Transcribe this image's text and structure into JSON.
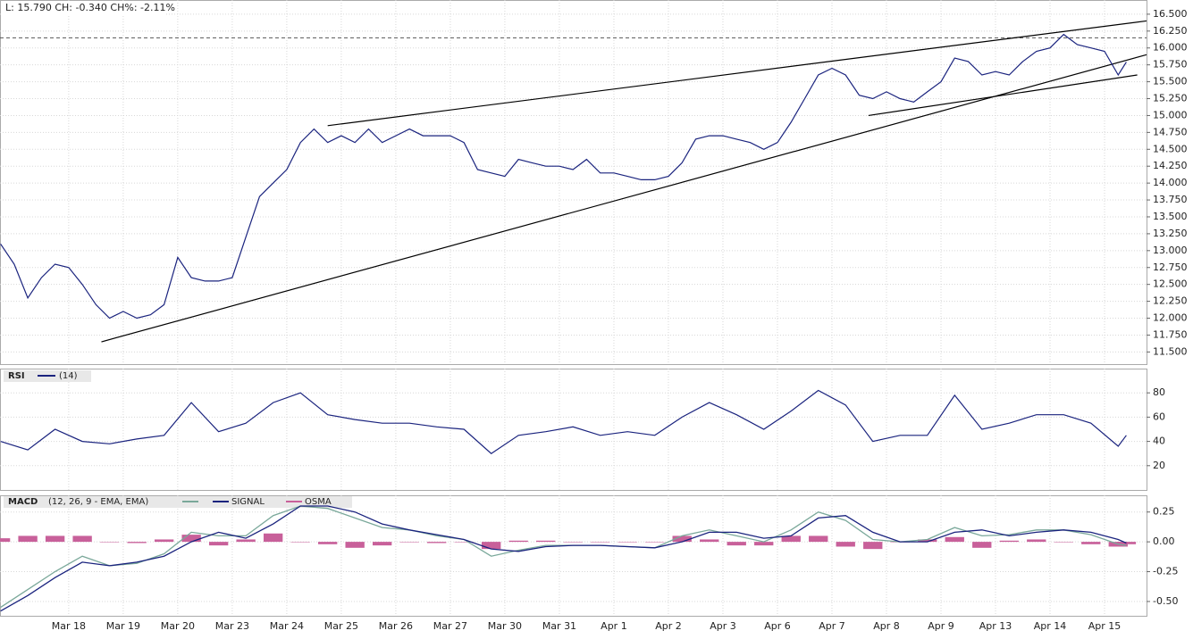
{
  "chart_data": [
    {
      "type": "line",
      "title": "L: 15.790 CH: -0.340 CH%: -2.11%",
      "color": "#1a237e",
      "x": [
        -1.25,
        -1,
        -0.75,
        -0.5,
        -0.25,
        0,
        0.25,
        0.5,
        0.75,
        1,
        1.25,
        1.5,
        1.75,
        2,
        2.25,
        2.5,
        2.75,
        3,
        3.25,
        3.5,
        3.75,
        4,
        4.25,
        4.5,
        4.75,
        5,
        5.25,
        5.5,
        5.75,
        6,
        6.25,
        6.5,
        6.75,
        7,
        7.25,
        7.5,
        7.75,
        8,
        8.25,
        8.5,
        8.75,
        9,
        9.25,
        9.5,
        9.75,
        10,
        10.25,
        10.5,
        10.75,
        11,
        11.25,
        11.5,
        11.75,
        12,
        12.25,
        12.5,
        12.75,
        13,
        13.25,
        13.5,
        13.75,
        14,
        14.25,
        14.5,
        14.75,
        15,
        15.25,
        15.5,
        15.75,
        16,
        16.25,
        16.5,
        16.75,
        17,
        17.25,
        17.5,
        17.75,
        18,
        18.25,
        18.5,
        18.75,
        19,
        19.25,
        19.4
      ],
      "values": [
        13.1,
        12.8,
        12.3,
        12.6,
        12.8,
        12.75,
        12.5,
        12.2,
        12.0,
        12.1,
        12.0,
        12.05,
        12.2,
        12.9,
        12.6,
        12.55,
        12.55,
        12.6,
        13.2,
        13.8,
        14.0,
        14.2,
        14.6,
        14.8,
        14.6,
        14.7,
        14.6,
        14.8,
        14.6,
        14.7,
        14.8,
        14.7,
        14.7,
        14.7,
        14.6,
        14.2,
        14.15,
        14.1,
        14.35,
        14.3,
        14.25,
        14.25,
        14.2,
        14.35,
        14.15,
        14.15,
        14.1,
        14.05,
        14.05,
        14.1,
        14.3,
        14.65,
        14.7,
        14.7,
        14.65,
        14.6,
        14.5,
        14.6,
        14.9,
        15.25,
        15.6,
        15.7,
        15.6,
        15.3,
        15.25,
        15.35,
        15.25,
        15.2,
        15.35,
        15.5,
        15.85,
        15.8,
        15.6,
        15.65,
        15.6,
        15.8,
        15.95,
        16.0,
        16.2,
        16.05,
        16.0,
        15.95,
        15.6,
        15.79
      ],
      "trendlines": [
        [
          4.75,
          14.85,
          19.77,
          16.4
        ],
        [
          0.6,
          11.65,
          19.77,
          15.9
        ],
        [
          14.67,
          15.0,
          19.6,
          15.6
        ]
      ],
      "reference_line": 16.15,
      "xlim": [
        -1.26,
        19.77
      ],
      "ylim": [
        11.32,
        16.71
      ],
      "xticks": [
        {
          "value": 0,
          "label": "Mar 18"
        },
        {
          "value": 1,
          "label": "Mar 19"
        },
        {
          "value": 2,
          "label": "Mar 20"
        },
        {
          "value": 3,
          "label": "Mar 23"
        },
        {
          "value": 4,
          "label": "Mar 24"
        },
        {
          "value": 5,
          "label": "Mar 25"
        },
        {
          "value": 6,
          "label": "Mar 26"
        },
        {
          "value": 7,
          "label": "Mar 27"
        },
        {
          "value": 8,
          "label": "Mar 30"
        },
        {
          "value": 9,
          "label": "Mar 31"
        },
        {
          "value": 10,
          "label": "Apr 1"
        },
        {
          "value": 11,
          "label": "Apr 2"
        },
        {
          "value": 12,
          "label": "Apr 3"
        },
        {
          "value": 13,
          "label": "Apr 6"
        },
        {
          "value": 14,
          "label": "Apr 7"
        },
        {
          "value": 15,
          "label": "Apr 8"
        },
        {
          "value": 16,
          "label": "Apr 9"
        },
        {
          "value": 17,
          "label": "Apr 13"
        },
        {
          "value": 18,
          "label": "Apr 14"
        },
        {
          "value": 19,
          "label": "Apr 15"
        }
      ],
      "yticks": [
        {
          "value": 16.5,
          "label": "16.500"
        },
        {
          "value": 16.25,
          "label": "16.250"
        },
        {
          "value": 16.0,
          "label": "16.000"
        },
        {
          "value": 15.75,
          "label": "15.750"
        },
        {
          "value": 15.5,
          "label": "15.500"
        },
        {
          "value": 15.25,
          "label": "15.250"
        },
        {
          "value": 15.0,
          "label": "15.000"
        },
        {
          "value": 14.75,
          "label": "14.750"
        },
        {
          "value": 14.5,
          "label": "14.500"
        },
        {
          "value": 14.25,
          "label": "14.250"
        },
        {
          "value": 14.0,
          "label": "14.000"
        },
        {
          "value": 13.75,
          "label": "13.750"
        },
        {
          "value": 13.5,
          "label": "13.500"
        },
        {
          "value": 13.25,
          "label": "13.250"
        },
        {
          "value": 13.0,
          "label": "13.000"
        },
        {
          "value": 12.75,
          "label": "12.750"
        },
        {
          "value": 12.5,
          "label": "12.500"
        },
        {
          "value": 12.25,
          "label": "12.250"
        },
        {
          "value": 12.0,
          "label": "12.000"
        },
        {
          "value": 11.75,
          "label": "11.750"
        },
        {
          "value": 11.5,
          "label": "11.500"
        }
      ],
      "grid": true
    },
    {
      "type": "line",
      "title": "RSI",
      "params": "(14)",
      "color": "#1a237e",
      "x": [
        -1.25,
        -0.75,
        -0.25,
        0.25,
        0.75,
        1.25,
        1.75,
        2.25,
        2.75,
        3.25,
        3.75,
        4.25,
        4.75,
        5.25,
        5.75,
        6.25,
        6.75,
        7.25,
        7.75,
        8.25,
        8.75,
        9.25,
        9.75,
        10.25,
        10.75,
        11.25,
        11.75,
        12.25,
        12.75,
        13.25,
        13.75,
        14.25,
        14.75,
        15.25,
        15.75,
        16.25,
        16.75,
        17.25,
        17.75,
        18.25,
        18.75,
        19.25,
        19.4
      ],
      "values": [
        40,
        33,
        50,
        40,
        38,
        42,
        45,
        72,
        48,
        55,
        72,
        80,
        62,
        58,
        55,
        55,
        52,
        50,
        30,
        45,
        48,
        52,
        45,
        48,
        45,
        60,
        72,
        62,
        50,
        65,
        82,
        70,
        40,
        45,
        45,
        78,
        50,
        55,
        62,
        62,
        55,
        36,
        45
      ],
      "xlim": [
        -1.26,
        19.77
      ],
      "ylim": [
        0,
        100
      ],
      "yticks": [
        20,
        40,
        60,
        80
      ],
      "grid": true
    },
    {
      "type": "macd",
      "title": "MACD",
      "params": "(12, 26, 9 - EMA, EMA)",
      "x": [
        -1.25,
        -0.75,
        -0.25,
        0.25,
        0.75,
        1.25,
        1.75,
        2.25,
        2.75,
        3.25,
        3.75,
        4.25,
        4.75,
        5.25,
        5.75,
        6.25,
        6.75,
        7.25,
        7.75,
        8.25,
        8.75,
        9.25,
        9.75,
        10.25,
        10.75,
        11.25,
        11.75,
        12.25,
        12.75,
        13.25,
        13.75,
        14.25,
        14.75,
        15.25,
        15.75,
        16.25,
        16.75,
        17.25,
        17.75,
        18.25,
        18.75,
        19.25,
        19.4
      ],
      "series": [
        {
          "color": "#7aa89a",
          "values": [
            -0.55,
            -0.4,
            -0.25,
            -0.12,
            -0.2,
            -0.18,
            -0.1,
            0.08,
            0.05,
            0.05,
            0.22,
            0.3,
            0.28,
            0.2,
            0.12,
            0.1,
            0.05,
            0.02,
            -0.12,
            -0.07,
            -0.03,
            -0.03,
            -0.03,
            -0.04,
            -0.05,
            0.05,
            0.1,
            0.05,
            0.0,
            0.1,
            0.25,
            0.18,
            0.02,
            0.0,
            0.02,
            0.12,
            0.05,
            0.06,
            0.1,
            0.1,
            0.06,
            -0.02,
            -0.03
          ]
        },
        {
          "name": "SIGNAL",
          "color": "#1a237e",
          "values": [
            -0.58,
            -0.45,
            -0.3,
            -0.17,
            -0.2,
            -0.17,
            -0.12,
            0.0,
            0.08,
            0.03,
            0.15,
            0.3,
            0.3,
            0.25,
            0.15,
            0.1,
            0.06,
            0.02,
            -0.06,
            -0.08,
            -0.04,
            -0.03,
            -0.03,
            -0.04,
            -0.05,
            0.0,
            0.08,
            0.08,
            0.03,
            0.05,
            0.2,
            0.22,
            0.08,
            0.0,
            0.0,
            0.08,
            0.1,
            0.05,
            0.08,
            0.1,
            0.08,
            0.02,
            -0.01
          ]
        },
        {
          "name": "OSMA",
          "color": "#c8609a",
          "style": "bar",
          "values": [
            0.03,
            0.05,
            0.05,
            0.05,
            0.0,
            -0.01,
            0.02,
            0.06,
            -0.03,
            0.02,
            0.07,
            0.0,
            -0.02,
            -0.05,
            -0.03,
            0.0,
            -0.01,
            0.0,
            -0.06,
            0.01,
            0.01,
            0.0,
            0.0,
            0.0,
            0.0,
            0.05,
            0.02,
            -0.03,
            -0.03,
            0.05,
            0.05,
            -0.04,
            -0.06,
            0.0,
            0.02,
            0.04,
            -0.05,
            0.01,
            0.02,
            0.0,
            -0.02,
            -0.04,
            -0.02
          ]
        }
      ],
      "xlim": [
        -1.26,
        19.77
      ],
      "ylim": [
        -0.62,
        0.39
      ],
      "yticks": [
        0.25,
        {
          "value": 0,
          "label": "0.00"
        },
        -0.25,
        {
          "value": -0.5,
          "label": "-0.50"
        }
      ],
      "grid": true
    }
  ]
}
